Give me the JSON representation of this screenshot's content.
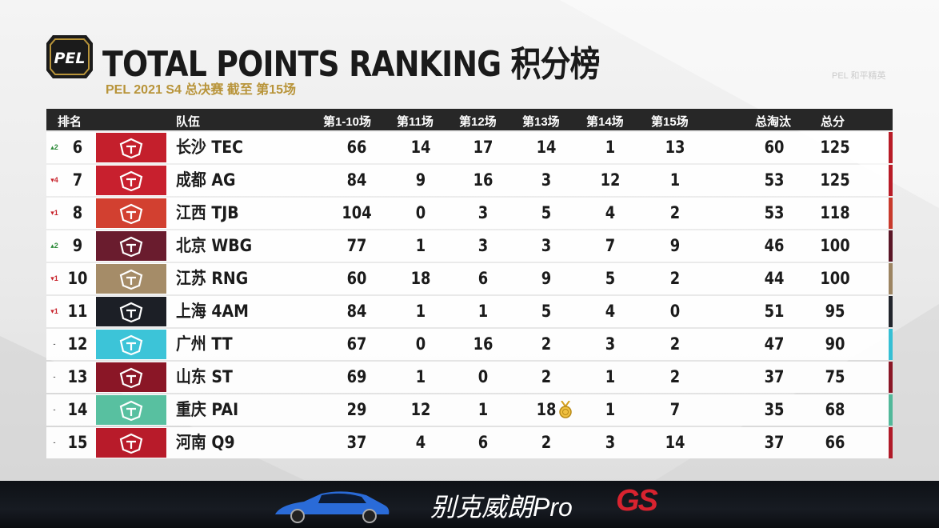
{
  "header": {
    "logo_text": "PEL",
    "title": "TOTAL POINTS RANKING 积分榜",
    "subtitle": "PEL 2021 S4 总决赛 截至 第15场"
  },
  "columns": {
    "rank": "排名",
    "team": "队伍",
    "g1_10": "第1-10场",
    "g11": "第11场",
    "g12": "第12场",
    "g13": "第13场",
    "g14": "第14场",
    "g15": "第15场",
    "kills": "总淘汰",
    "total": "总分"
  },
  "rows": [
    {
      "change": "▴2",
      "dir": "up",
      "rank": "6",
      "team": "长沙 TEC",
      "logo_color": "#c41f2c",
      "stripe": "#b81b26",
      "g1_10": "66",
      "g11": "14",
      "g12": "17",
      "g13": "14",
      "g14": "1",
      "g15": "13",
      "kills": "60",
      "total": "125"
    },
    {
      "change": "▾4",
      "dir": "down",
      "rank": "7",
      "team": "成都 AG",
      "logo_color": "#c8202e",
      "stripe": "#b81b26",
      "g1_10": "84",
      "g11": "9",
      "g12": "16",
      "g13": "3",
      "g14": "12",
      "g15": "1",
      "kills": "53",
      "total": "125"
    },
    {
      "change": "▾1",
      "dir": "down",
      "rank": "8",
      "team": "江西 TJB",
      "logo_color": "#d24030",
      "stripe": "#c83a2c",
      "g1_10": "104",
      "g11": "0",
      "g12": "3",
      "g13": "5",
      "g14": "4",
      "g15": "2",
      "kills": "53",
      "total": "118"
    },
    {
      "change": "▴2",
      "dir": "up",
      "rank": "9",
      "team": "北京 WBG",
      "logo_color": "#6a1c2e",
      "stripe": "#5a1626",
      "g1_10": "77",
      "g11": "1",
      "g12": "3",
      "g13": "3",
      "g14": "7",
      "g15": "9",
      "kills": "46",
      "total": "100"
    },
    {
      "change": "▾1",
      "dir": "down",
      "rank": "10",
      "team": "江苏 RNG",
      "logo_color": "#a58c68",
      "stripe": "#9c8462",
      "g1_10": "60",
      "g11": "18",
      "g12": "6",
      "g13": "9",
      "g14": "5",
      "g15": "2",
      "kills": "44",
      "total": "100"
    },
    {
      "change": "▾1",
      "dir": "down",
      "rank": "11",
      "team": "上海 4AM",
      "logo_color": "#1c1f26",
      "stripe": "#22252c",
      "g1_10": "84",
      "g11": "1",
      "g12": "1",
      "g13": "5",
      "g14": "4",
      "g15": "0",
      "kills": "51",
      "total": "95"
    },
    {
      "change": "-",
      "dir": "same",
      "rank": "12",
      "team": "广州 TT",
      "logo_color": "#3cc4d8",
      "stripe": "#36bfd4",
      "g1_10": "67",
      "g11": "0",
      "g12": "16",
      "g13": "2",
      "g14": "3",
      "g15": "2",
      "kills": "47",
      "total": "90"
    },
    {
      "change": "-",
      "dir": "same",
      "rank": "13",
      "team": "山东 ST",
      "logo_color": "#8a1626",
      "stripe": "#8a1626",
      "g1_10": "69",
      "g11": "1",
      "g12": "0",
      "g13": "2",
      "g14": "1",
      "g15": "2",
      "kills": "37",
      "total": "75"
    },
    {
      "change": "-",
      "dir": "same",
      "rank": "14",
      "team": "重庆 PAI",
      "logo_color": "#58c0a0",
      "stripe": "#52b89a",
      "g1_10": "29",
      "g11": "12",
      "g12": "1",
      "g13": "18",
      "g14": "1",
      "g15": "7",
      "kills": "35",
      "total": "68",
      "medal": true
    },
    {
      "change": "-",
      "dir": "same",
      "rank": "15",
      "team": "河南 Q9",
      "logo_color": "#b81b2a",
      "stripe": "#b01a28",
      "g1_10": "37",
      "g11": "4",
      "g12": "6",
      "g13": "2",
      "g14": "3",
      "g15": "14",
      "kills": "37",
      "total": "66"
    }
  ],
  "watermark": "PEL 和平精英",
  "ad": {
    "text": "别克威朗Pro",
    "logo": "GS"
  }
}
